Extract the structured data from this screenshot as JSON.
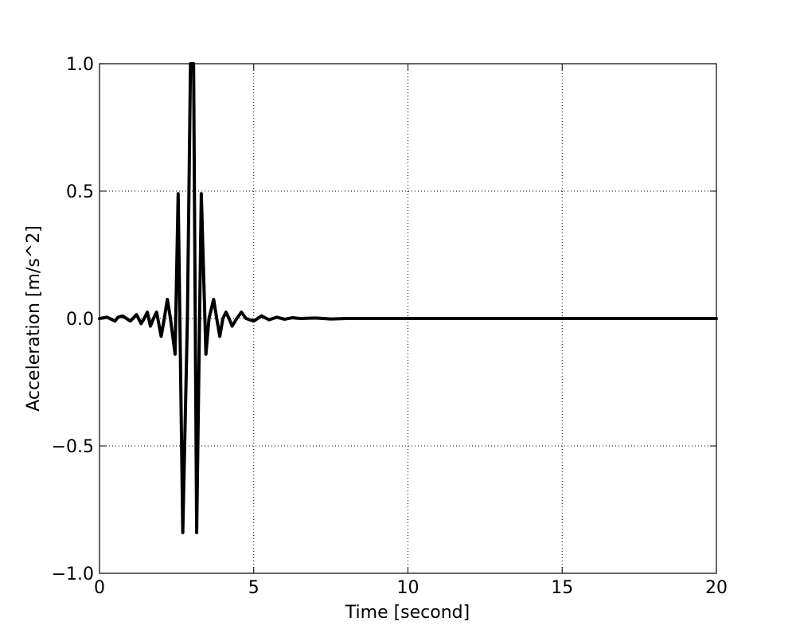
{
  "chart_data": {
    "type": "line",
    "title": "",
    "xlabel": "Time [second]",
    "ylabel": "Acceleration [m/s^2]",
    "xlim": [
      0,
      20
    ],
    "ylim": [
      -1.0,
      1.0
    ],
    "xticks": [
      0,
      5,
      10,
      15,
      20
    ],
    "xtick_labels": [
      "0",
      "5",
      "10",
      "15",
      "20"
    ],
    "yticks": [
      -1.0,
      -0.5,
      0.0,
      0.5,
      1.0
    ],
    "ytick_labels": [
      "−1.0",
      "−0.5",
      "0.0",
      "0.5",
      "1.0"
    ],
    "grid": true,
    "legend": "none",
    "line_color": "#000000",
    "series": [
      {
        "x": [
          0,
          0.25,
          0.5,
          0.6,
          0.75,
          1.0,
          1.2,
          1.35,
          1.45,
          1.55,
          1.65,
          1.75,
          1.85,
          2.0,
          2.1,
          2.2,
          2.3,
          2.45,
          2.55,
          2.7,
          2.85,
          2.95,
          3.0,
          3.05,
          3.15,
          3.3,
          3.45,
          3.55,
          3.7,
          3.8,
          3.9,
          4.0,
          4.1,
          4.2,
          4.3,
          4.45,
          4.6,
          4.75,
          5.0,
          5.25,
          5.5,
          5.75,
          6.0,
          6.25,
          6.5,
          7.0,
          7.5,
          8.0,
          9.0,
          10.0,
          12.0,
          15.0,
          20.0
        ],
        "y": [
          0.0,
          0.005,
          -0.01,
          0.005,
          0.01,
          -0.01,
          0.015,
          -0.02,
          0.0,
          0.025,
          -0.03,
          0.0,
          0.025,
          -0.07,
          0.0,
          0.075,
          0.0,
          -0.14,
          0.49,
          -0.84,
          0.0,
          1.0,
          1.0,
          1.0,
          -0.84,
          0.49,
          -0.14,
          0.0,
          0.075,
          0.0,
          -0.07,
          0.0,
          0.025,
          0.0,
          -0.03,
          0.0,
          0.025,
          0.0,
          -0.01,
          0.01,
          -0.005,
          0.005,
          -0.003,
          0.003,
          0.0,
          0.002,
          -0.002,
          0.0,
          0.0,
          0.0,
          0.0,
          0.0,
          0.0
        ]
      }
    ]
  }
}
